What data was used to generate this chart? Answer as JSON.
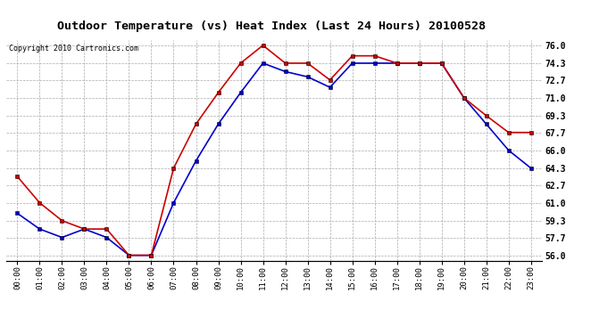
{
  "title": "Outdoor Temperature (vs) Heat Index (Last 24 Hours) 20100528",
  "copyright": "Copyright 2010 Cartronics.com",
  "hours": [
    "00:00",
    "01:00",
    "02:00",
    "03:00",
    "04:00",
    "05:00",
    "06:00",
    "07:00",
    "08:00",
    "09:00",
    "10:00",
    "11:00",
    "12:00",
    "13:00",
    "14:00",
    "15:00",
    "16:00",
    "17:00",
    "18:00",
    "19:00",
    "20:00",
    "21:00",
    "22:00",
    "23:00"
  ],
  "temp": [
    60.0,
    58.5,
    57.7,
    58.5,
    57.7,
    56.0,
    56.0,
    61.0,
    65.0,
    68.5,
    71.5,
    74.3,
    73.5,
    73.0,
    72.0,
    74.3,
    74.3,
    74.3,
    74.3,
    74.3,
    71.0,
    68.5,
    66.0,
    64.3
  ],
  "heat_index": [
    63.5,
    61.0,
    59.3,
    58.5,
    58.5,
    56.0,
    56.0,
    64.3,
    68.5,
    71.5,
    74.3,
    76.0,
    74.3,
    74.3,
    72.7,
    75.0,
    75.0,
    74.3,
    74.3,
    74.3,
    71.0,
    69.3,
    67.7,
    67.7
  ],
  "temp_color": "#0000cc",
  "heat_color": "#cc0000",
  "bg_color": "#ffffff",
  "plot_bg_color": "#ffffff",
  "grid_color": "#aaaaaa",
  "y_ticks": [
    56.0,
    57.7,
    59.3,
    61.0,
    62.7,
    64.3,
    66.0,
    67.7,
    69.3,
    71.0,
    72.7,
    74.3,
    76.0
  ],
  "ylim": [
    55.5,
    76.5
  ],
  "marker": "s",
  "marker_size": 3,
  "linewidth": 1.2,
  "title_fontsize": 9.5,
  "copyright_fontsize": 6,
  "tick_fontsize": 6.5,
  "ytick_fontsize": 7
}
